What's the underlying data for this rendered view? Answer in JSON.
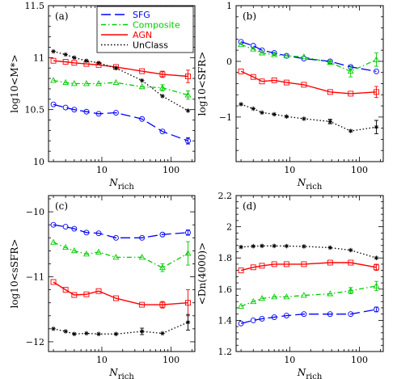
{
  "chart_data": [
    {
      "type": "line",
      "panel_label": "(a)",
      "xlabel": "N",
      "xlabel_sub": "rich",
      "ylabel": "log10<M*>",
      "xscale": "log",
      "xlim": [
        1.7,
        220
      ],
      "ylim": [
        10,
        11.5
      ],
      "x_ticks": [
        10,
        100
      ],
      "x_tick_labels": [
        "10",
        "100"
      ],
      "y_ticks": [
        10,
        10.5,
        11,
        11.5
      ],
      "y_tick_labels": [
        "10",
        "10.5",
        "11",
        "11.5"
      ],
      "legend_position": "top-center",
      "legend": [
        {
          "label": "SFG",
          "color": "#0000ff"
        },
        {
          "label": "Composite",
          "color": "#00cc00"
        },
        {
          "label": "AGN",
          "color": "#ff0000"
        },
        {
          "label": "UnClass",
          "color": "#000000"
        }
      ],
      "series": [
        {
          "name": "SFG",
          "color": "#0000ff",
          "style": "dashed",
          "marker": "circle",
          "x": [
            2,
            3,
            4,
            6,
            9,
            16,
            38,
            75,
            175
          ],
          "y": [
            10.55,
            10.52,
            10.5,
            10.48,
            10.46,
            10.47,
            10.41,
            10.29,
            10.2
          ],
          "err": [
            0,
            0,
            0,
            0,
            0,
            0,
            0,
            0,
            0.03
          ]
        },
        {
          "name": "Composite",
          "color": "#00cc00",
          "style": "dashdot",
          "marker": "triangle",
          "x": [
            2,
            3,
            4,
            6,
            9,
            16,
            38,
            75,
            175
          ],
          "y": [
            10.78,
            10.76,
            10.75,
            10.75,
            10.75,
            10.76,
            10.72,
            10.71,
            10.64
          ],
          "err": [
            0,
            0,
            0,
            0,
            0,
            0,
            0,
            0.03,
            0.04
          ]
        },
        {
          "name": "AGN",
          "color": "#ff0000",
          "style": "solid",
          "marker": "square",
          "x": [
            2,
            3,
            4,
            6,
            9,
            16,
            38,
            75,
            175
          ],
          "y": [
            10.97,
            10.96,
            10.95,
            10.94,
            10.93,
            10.91,
            10.87,
            10.84,
            10.82
          ],
          "err": [
            0,
            0,
            0,
            0,
            0,
            0,
            0,
            0.03,
            0.06
          ]
        },
        {
          "name": "UnClass",
          "color": "#000000",
          "style": "dotted",
          "marker": "star",
          "x": [
            2,
            3,
            4,
            6,
            9,
            16,
            38,
            75,
            175
          ],
          "y": [
            11.06,
            11.03,
            11.0,
            10.97,
            10.95,
            10.9,
            10.78,
            10.63,
            10.49
          ],
          "err": [
            0,
            0,
            0,
            0,
            0,
            0,
            0,
            0,
            0
          ]
        }
      ]
    },
    {
      "type": "line",
      "panel_label": "(b)",
      "xlabel": "N",
      "xlabel_sub": "rich",
      "ylabel": "log10<SFR>",
      "xscale": "log",
      "xlim": [
        1.7,
        220
      ],
      "ylim": [
        -1.8,
        1
      ],
      "x_ticks": [
        10,
        100
      ],
      "x_tick_labels": [
        "10",
        "100"
      ],
      "y_ticks": [
        -1,
        0,
        1
      ],
      "y_tick_labels": [
        "−1",
        "0",
        "1"
      ],
      "series": [
        {
          "name": "SFG",
          "color": "#0000ff",
          "style": "dashed",
          "marker": "circle",
          "x": [
            2,
            3,
            4,
            6,
            9,
            16,
            38,
            75,
            175
          ],
          "y": [
            0.35,
            0.28,
            0.2,
            0.15,
            0.1,
            0.05,
            0.0,
            -0.1,
            -0.18
          ],
          "err": [
            0,
            0,
            0,
            0,
            0,
            0,
            0,
            0,
            0
          ]
        },
        {
          "name": "Composite",
          "color": "#00cc00",
          "style": "dashdot",
          "marker": "triangle",
          "x": [
            2,
            3,
            4,
            6,
            9,
            16,
            38,
            75,
            175
          ],
          "y": [
            0.3,
            0.22,
            0.15,
            0.12,
            0.1,
            0.08,
            -0.02,
            -0.18,
            0.03
          ],
          "err": [
            0,
            0,
            0,
            0,
            0,
            0,
            0.03,
            0.1,
            0.12
          ]
        },
        {
          "name": "AGN",
          "color": "#ff0000",
          "style": "solid",
          "marker": "square",
          "x": [
            2,
            3,
            4,
            6,
            9,
            16,
            38,
            75,
            175
          ],
          "y": [
            -0.18,
            -0.28,
            -0.36,
            -0.34,
            -0.38,
            -0.42,
            -0.55,
            -0.58,
            -0.55
          ],
          "err": [
            0,
            0,
            0,
            0,
            0,
            0,
            0,
            0,
            0.1
          ]
        },
        {
          "name": "UnClass",
          "color": "#000000",
          "style": "dotted",
          "marker": "star",
          "x": [
            2,
            3,
            4,
            6,
            9,
            16,
            38,
            75,
            175
          ],
          "y": [
            -0.77,
            -0.85,
            -0.92,
            -0.95,
            -0.99,
            -1.03,
            -1.08,
            -1.25,
            -1.18
          ],
          "err": [
            0,
            0,
            0,
            0,
            0,
            0,
            0.04,
            0,
            0.12
          ]
        }
      ]
    },
    {
      "type": "line",
      "panel_label": "(c)",
      "xlabel": "N",
      "xlabel_sub": "rich",
      "ylabel": "log10<sSFR>",
      "xscale": "log",
      "xlim": [
        1.7,
        220
      ],
      "ylim": [
        -12.15,
        -9.75
      ],
      "x_ticks": [
        10,
        100
      ],
      "x_tick_labels": [
        "10",
        "100"
      ],
      "y_ticks": [
        -12,
        -11,
        -10
      ],
      "y_tick_labels": [
        "−12",
        "−11",
        "−10"
      ],
      "series": [
        {
          "name": "SFG",
          "color": "#0000ff",
          "style": "dashed",
          "marker": "circle",
          "x": [
            2,
            3,
            4,
            6,
            9,
            16,
            38,
            75,
            175
          ],
          "y": [
            -10.2,
            -10.23,
            -10.26,
            -10.32,
            -10.33,
            -10.4,
            -10.4,
            -10.35,
            -10.32
          ],
          "err": [
            0,
            0,
            0,
            0,
            0,
            0,
            0,
            0,
            0.04
          ]
        },
        {
          "name": "Composite",
          "color": "#00cc00",
          "style": "dashdot",
          "marker": "triangle",
          "x": [
            2,
            3,
            4,
            6,
            9,
            16,
            38,
            75,
            175
          ],
          "y": [
            -10.47,
            -10.55,
            -10.6,
            -10.65,
            -10.62,
            -10.7,
            -10.7,
            -10.86,
            -10.64
          ],
          "err": [
            0,
            0,
            0,
            0,
            0,
            0,
            0,
            0.06,
            0.18
          ]
        },
        {
          "name": "AGN",
          "color": "#ff0000",
          "style": "solid",
          "marker": "square",
          "x": [
            2,
            3,
            4,
            6,
            9,
            16,
            38,
            75,
            175
          ],
          "y": [
            -11.08,
            -11.2,
            -11.28,
            -11.27,
            -11.22,
            -11.33,
            -11.43,
            -11.43,
            -11.4
          ],
          "err": [
            0,
            0,
            0,
            0,
            0,
            0,
            0,
            0.05,
            0.2
          ]
        },
        {
          "name": "UnClass",
          "color": "#000000",
          "style": "dotted",
          "marker": "star",
          "x": [
            2,
            3,
            4,
            6,
            9,
            16,
            38,
            75,
            175
          ],
          "y": [
            -11.8,
            -11.84,
            -11.88,
            -11.87,
            -11.88,
            -11.88,
            -11.84,
            -11.87,
            -11.7
          ],
          "err": [
            0,
            0,
            0,
            0,
            0,
            0,
            0.05,
            0,
            0.12
          ]
        }
      ]
    },
    {
      "type": "line",
      "panel_label": "(d)",
      "xlabel": "N",
      "xlabel_sub": "rich",
      "ylabel": "<Dn(4000)>",
      "xscale": "log",
      "xlim": [
        1.7,
        220
      ],
      "ylim": [
        1.2,
        2.2
      ],
      "x_ticks": [
        10,
        100
      ],
      "x_tick_labels": [
        "10",
        "100"
      ],
      "y_ticks": [
        1.2,
        1.4,
        1.6,
        1.8,
        2,
        2.2
      ],
      "y_tick_labels": [
        "1.2",
        "1.4",
        "1.6",
        "1.8",
        "2",
        "2.2"
      ],
      "series": [
        {
          "name": "SFG",
          "color": "#0000ff",
          "style": "dashed",
          "marker": "circle",
          "x": [
            2,
            3,
            4,
            6,
            9,
            16,
            38,
            75,
            175
          ],
          "y": [
            1.38,
            1.4,
            1.41,
            1.42,
            1.43,
            1.44,
            1.44,
            1.44,
            1.47
          ],
          "err": [
            0,
            0,
            0,
            0,
            0,
            0,
            0,
            0,
            0.015
          ]
        },
        {
          "name": "Composite",
          "color": "#00cc00",
          "style": "dashdot",
          "marker": "triangle",
          "x": [
            2,
            3,
            4,
            6,
            9,
            16,
            38,
            75,
            175
          ],
          "y": [
            1.49,
            1.52,
            1.54,
            1.55,
            1.55,
            1.56,
            1.57,
            1.59,
            1.62
          ],
          "err": [
            0,
            0,
            0,
            0,
            0,
            0,
            0,
            0.02,
            0.03
          ]
        },
        {
          "name": "AGN",
          "color": "#ff0000",
          "style": "solid",
          "marker": "square",
          "x": [
            2,
            3,
            4,
            6,
            9,
            16,
            38,
            75,
            175
          ],
          "y": [
            1.72,
            1.74,
            1.75,
            1.76,
            1.76,
            1.76,
            1.77,
            1.77,
            1.74
          ],
          "err": [
            0,
            0,
            0,
            0,
            0,
            0,
            0,
            0,
            0.02
          ]
        },
        {
          "name": "UnClass",
          "color": "#000000",
          "style": "dotted",
          "marker": "star",
          "x": [
            2,
            3,
            4,
            6,
            9,
            16,
            38,
            75,
            175
          ],
          "y": [
            1.87,
            1.875,
            1.877,
            1.877,
            1.876,
            1.874,
            1.866,
            1.85,
            1.8
          ],
          "err": [
            0,
            0,
            0,
            0,
            0,
            0,
            0,
            0,
            0
          ]
        }
      ]
    }
  ]
}
